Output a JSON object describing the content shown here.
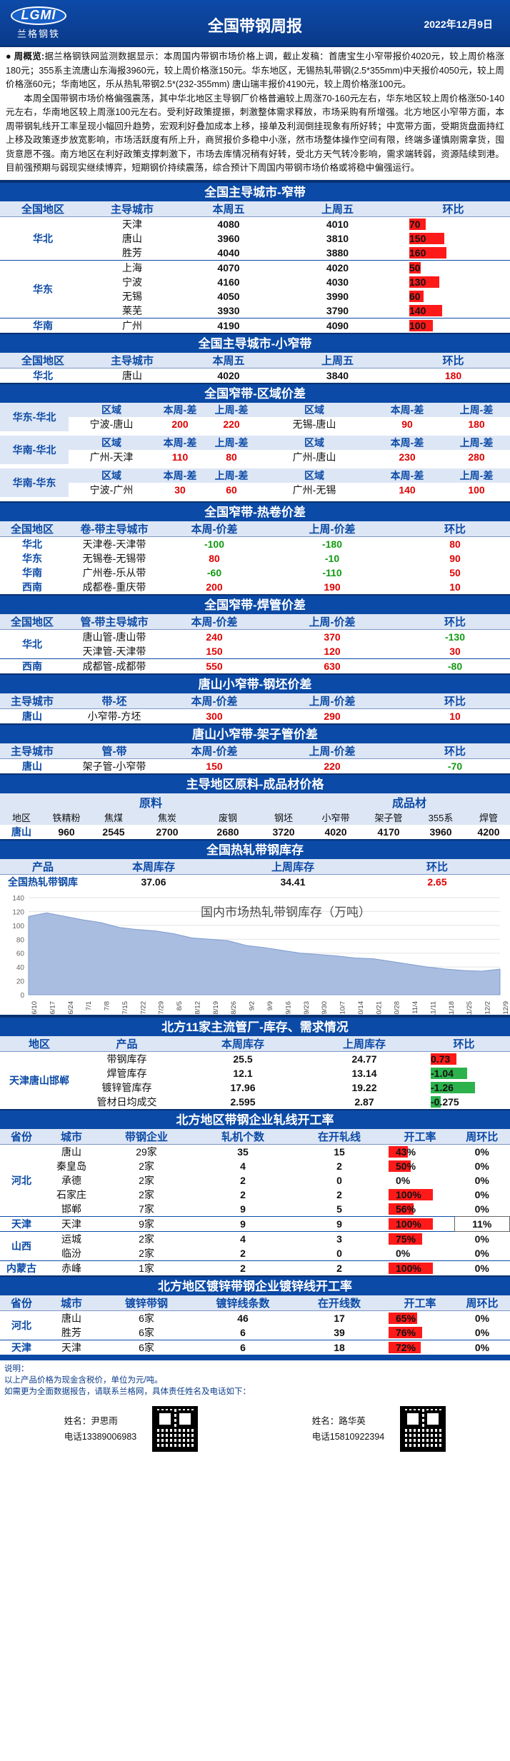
{
  "header": {
    "logo_text": "LGMI",
    "logo_cn": "兰格钢铁",
    "title": "全国带钢周报",
    "date": "2022年12月9日"
  },
  "overview": {
    "label": "● 周概览:",
    "p1": "据兰格钢铁网监测数据显示：本周国内带钢市场价格上调，截止发稿：首唐宝生小窄带报价4020元，较上周价格涨180元；355系主流唐山东海报3960元，较上周价格涨150元。华东地区，无锡热轧带钢(2.5*355mm)中天报价4050元，较上周价格涨60元；华南地区，乐从热轧带钢2.5*(232-355mm) 唐山瑞丰报价4190元，较上周价格涨100元。",
    "p2": "本周全国带钢市场价格偏强震荡，其中华北地区主导钢厂价格普遍较上周涨70-160元左右，华东地区较上周价格涨50-140元左右，华南地区较上周涨100元左右。受利好政策提振，刺激整体需求释放，市场采购有所增强。北方地区小窄带方面，本周带钢轧线开工率呈现小幅回升趋势，宏观利好叠加成本上移，接单及利润倒挂现象有所好转；中宽带方面，受期货盘面持红上移及政策逐步放宽影响，市场活跃度有所上升，商贸报价多稳中小涨，然市场整体操作空间有限，终端多谨慎刚需拿货，囤货意愿不强。南方地区在利好政策支撑刺激下，市场去库情况稍有好转，受北方天气转冷影响，需求端转弱，资源陆续到港。目前强预期与弱现实继续博弈，短期钢价持续震荡，综合预计下周国内带钢市场价格或将稳中偏强运行。"
  },
  "narrow_city": {
    "title": "全国主导城市-窄带",
    "headers": [
      "全国地区",
      "主导城市",
      "本周五",
      "上周五",
      "环比"
    ],
    "rows": [
      {
        "region": "华北",
        "city": "天津",
        "this": "4080",
        "last": "4010",
        "diff": "70",
        "pct": 0.44
      },
      {
        "region": "",
        "city": "唐山",
        "this": "3960",
        "last": "3810",
        "diff": "150",
        "pct": 0.94
      },
      {
        "region": "",
        "city": "胜芳",
        "this": "4040",
        "last": "3880",
        "diff": "160",
        "pct": 1.0
      },
      {
        "region": "华东",
        "city": "上海",
        "this": "4070",
        "last": "4020",
        "diff": "50",
        "pct": 0.31
      },
      {
        "region": "",
        "city": "宁波",
        "this": "4160",
        "last": "4030",
        "diff": "130",
        "pct": 0.81
      },
      {
        "region": "",
        "city": "无锡",
        "this": "4050",
        "last": "3990",
        "diff": "60",
        "pct": 0.38
      },
      {
        "region": "",
        "city": "莱芜",
        "this": "3930",
        "last": "3790",
        "diff": "140",
        "pct": 0.88
      },
      {
        "region": "华南",
        "city": "广州",
        "this": "4190",
        "last": "4090",
        "diff": "100",
        "pct": 0.63
      }
    ]
  },
  "small_narrow": {
    "title": "全国主导城市-小窄带",
    "headers": [
      "全国地区",
      "主导城市",
      "本周五",
      "上周五",
      "环比"
    ],
    "rows": [
      {
        "region": "华北",
        "city": "唐山",
        "this": "4020",
        "last": "3840",
        "diff": "180"
      }
    ]
  },
  "region_spread": {
    "title": "全国窄带-区域价差",
    "headers": [
      "区域",
      "本周-差",
      "上周-差",
      "区域",
      "本周-差",
      "上周-差"
    ],
    "groups": [
      {
        "name": "华东-华北",
        "left": {
          "area": "宁波-唐山",
          "this": "200",
          "last": "220"
        },
        "right": {
          "area": "无锡-唐山",
          "this": "90",
          "last": "180"
        }
      },
      {
        "name": "华南-华北",
        "left": {
          "area": "广州-天津",
          "this": "110",
          "last": "80"
        },
        "right": {
          "area": "广州-唐山",
          "this": "230",
          "last": "280"
        }
      },
      {
        "name": "华南-华东",
        "left": {
          "area": "宁波-广州",
          "this": "30",
          "last": "60"
        },
        "right": {
          "area": "广州-无锡",
          "this": "140",
          "last": "100"
        }
      }
    ]
  },
  "hot_coil": {
    "title": "全国窄带-热卷价差",
    "headers": [
      "全国地区",
      "卷-带主导城市",
      "本周-价差",
      "上周-价差",
      "环比"
    ],
    "rows": [
      {
        "region": "华北",
        "city": "天津卷-天津带",
        "this": "-100",
        "last": "-180",
        "diff": "80",
        "tc": "green",
        "lc": "green",
        "dc": "red"
      },
      {
        "region": "华东",
        "city": "无锡卷-无锡带",
        "this": "80",
        "last": "-10",
        "diff": "90",
        "tc": "red",
        "lc": "green",
        "dc": "red"
      },
      {
        "region": "华南",
        "city": "广州卷-乐从带",
        "this": "-60",
        "last": "-110",
        "diff": "50",
        "tc": "green",
        "lc": "green",
        "dc": "red"
      },
      {
        "region": "西南",
        "city": "成都卷-重庆带",
        "this": "200",
        "last": "190",
        "diff": "10",
        "tc": "red",
        "lc": "red",
        "dc": "red"
      }
    ]
  },
  "welded_pipe": {
    "title": "全国窄带-焊管价差",
    "headers": [
      "全国地区",
      "管-带主导城市",
      "本周-价差",
      "上周-价差",
      "环比"
    ],
    "rows": [
      {
        "region": "华北",
        "city": "唐山管-唐山带",
        "this": "240",
        "last": "370",
        "diff": "-130",
        "dc": "green"
      },
      {
        "region": "",
        "city": "天津管-天津带",
        "this": "150",
        "last": "120",
        "diff": "30",
        "dc": "red"
      },
      {
        "region": "西南",
        "city": "成都管-成都带",
        "this": "550",
        "last": "630",
        "diff": "-80",
        "dc": "green"
      }
    ]
  },
  "billet": {
    "title": "唐山小窄带-钢坯价差",
    "headers": [
      "主导城市",
      "带-坯",
      "本周-价差",
      "上周-价差",
      "环比"
    ],
    "row": {
      "city": "唐山",
      "item": "小窄带-方坯",
      "this": "300",
      "last": "290",
      "diff": "10"
    }
  },
  "shelf_pipe": {
    "title": "唐山小窄带-架子管价差",
    "headers": [
      "主导城市",
      "管-带",
      "本周-价差",
      "上周-价差",
      "环比"
    ],
    "row": {
      "city": "唐山",
      "item": "架子管-小窄带",
      "this": "150",
      "last": "220",
      "diff": "-70"
    }
  },
  "raw_material": {
    "title": "主导地区原料-成品材价格",
    "group_raw": "原料",
    "group_product": "成品材",
    "headers": [
      "地区",
      "铁精粉",
      "焦煤",
      "焦炭",
      "废钢",
      "钢坯",
      "小窄带",
      "架子管",
      "355系",
      "焊管"
    ],
    "row": [
      "唐山",
      "960",
      "2545",
      "2700",
      "2680",
      "3720",
      "4020",
      "4170",
      "3960",
      "4200"
    ]
  },
  "inventory": {
    "title": "全国热轧带钢库存",
    "headers": [
      "产品",
      "本周库存",
      "上周库存",
      "环比"
    ],
    "row": {
      "product": "全国热轧带钢库",
      "this": "37.06",
      "last": "34.41",
      "diff": "2.65"
    }
  },
  "chart_data": {
    "type": "area",
    "title": "国内市场热轧带钢库存（万吨）",
    "ylim": [
      0,
      140
    ],
    "yticks": [
      "0",
      "20",
      "40",
      "60",
      "80",
      "100",
      "120",
      "140"
    ],
    "x": [
      "6/10",
      "6/17",
      "6/24",
      "7/1",
      "7/8",
      "7/15",
      "7/22",
      "7/29",
      "8/5",
      "8/12",
      "8/19",
      "8/26",
      "9/2",
      "9/9",
      "9/16",
      "9/23",
      "9/30",
      "10/7",
      "10/14",
      "10/21",
      "10/28",
      "11/4",
      "11/11",
      "11/18",
      "11/25",
      "12/2",
      "12/9"
    ],
    "series": [
      {
        "values": [
          113,
          118,
          113,
          108,
          104,
          97,
          94,
          92,
          88,
          82,
          80,
          78,
          71,
          68,
          64,
          60,
          58,
          56,
          53,
          52,
          48,
          44,
          40,
          37,
          35,
          34,
          37
        ]
      }
    ],
    "color": "#a9bde0"
  },
  "pipe_factories": {
    "title": "北方11家主流管厂-库存、需求情况",
    "headers": [
      "地区",
      "产品",
      "本周库存",
      "上周库存",
      "环比"
    ],
    "region": "天津唐山邯郸",
    "rows": [
      {
        "product": "带钢库存",
        "this": "25.5",
        "last": "24.77",
        "diff": "0.73",
        "pct": 0.58,
        "color": "#ff1a1a"
      },
      {
        "product": "焊管库存",
        "this": "12.1",
        "last": "13.14",
        "diff": "-1.04",
        "pct": 0.82,
        "color": "#2bb24c"
      },
      {
        "product": "镀锌管库存",
        "this": "17.96",
        "last": "19.22",
        "diff": "-1.26",
        "pct": 1.0,
        "color": "#2bb24c"
      },
      {
        "product": "管材日均成交",
        "this": "2.595",
        "last": "2.87",
        "diff": "-0.275",
        "pct": 0.22,
        "color": "#2bb24c"
      }
    ]
  },
  "rolling_rate": {
    "title": "北方地区带钢企业轧线开工率",
    "headers": [
      "省份",
      "城市",
      "带钢企业",
      "轧机个数",
      "在开轧线",
      "开工率",
      "周环比"
    ],
    "rows": [
      {
        "prov": "",
        "city": "唐山",
        "firms": "29家",
        "mills": "35",
        "open": "15",
        "rate": "43%",
        "pct": 0.43,
        "wow": "0%"
      },
      {
        "prov": "",
        "city": "秦皇岛",
        "firms": "2家",
        "mills": "4",
        "open": "2",
        "rate": "50%",
        "pct": 0.5,
        "wow": "0%"
      },
      {
        "prov": "河北",
        "city": "承德",
        "firms": "2家",
        "mills": "2",
        "open": "0",
        "rate": "0%",
        "pct": 0,
        "wow": "0%"
      },
      {
        "prov": "",
        "city": "石家庄",
        "firms": "2家",
        "mills": "2",
        "open": "2",
        "rate": "100%",
        "pct": 1.0,
        "wow": "0%"
      },
      {
        "prov": "",
        "city": "邯郸",
        "firms": "7家",
        "mills": "9",
        "open": "5",
        "rate": "56%",
        "pct": 0.56,
        "wow": "0%"
      },
      {
        "prov": "天津",
        "city": "天津",
        "firms": "9家",
        "mills": "9",
        "open": "9",
        "rate": "100%",
        "pct": 1.0,
        "wow": "11%"
      },
      {
        "prov": "山西",
        "city": "运城",
        "firms": "2家",
        "mills": "4",
        "open": "3",
        "rate": "75%",
        "pct": 0.75,
        "wow": "0%"
      },
      {
        "prov": "",
        "city": "临汾",
        "firms": "2家",
        "mills": "2",
        "open": "0",
        "rate": "0%",
        "pct": 0,
        "wow": "0%"
      },
      {
        "prov": "内蒙古",
        "city": "赤峰",
        "firms": "1家",
        "mills": "2",
        "open": "2",
        "rate": "100%",
        "pct": 1.0,
        "wow": "0%"
      }
    ]
  },
  "galv_rate": {
    "title": "北方地区镀锌带钢企业镀锌线开工率",
    "headers": [
      "省份",
      "城市",
      "镀锌带钢",
      "镀锌线条数",
      "在开线数",
      "开工率",
      "周环比"
    ],
    "rows": [
      {
        "prov": "河北",
        "city": "唐山",
        "firms": "6家",
        "lines": "46",
        "open": "17",
        "rate": "65%",
        "pct": 0.65,
        "wow": "0%"
      },
      {
        "prov": "",
        "city": "胜芳",
        "firms": "6家",
        "lines": "6",
        "open": "39",
        "rate": "76%",
        "pct": 0.76,
        "wow": "0%"
      },
      {
        "prov": "天津",
        "city": "天津",
        "firms": "6家",
        "lines": "6",
        "open": "18",
        "rate": "72%",
        "pct": 0.72,
        "wow": "0%"
      }
    ]
  },
  "footer": {
    "note_label": "说明：",
    "note": "以上产品价格为现金含税价，单位为元/吨。",
    "contact_line": "如需更为全面数据报告，请联系兰格网，具体责任姓名及电话如下：",
    "people": [
      {
        "name": "姓名：尹思雨",
        "phone": "电话13389006983"
      },
      {
        "name": "姓名：路华英",
        "phone": "电话15810922394"
      }
    ]
  }
}
